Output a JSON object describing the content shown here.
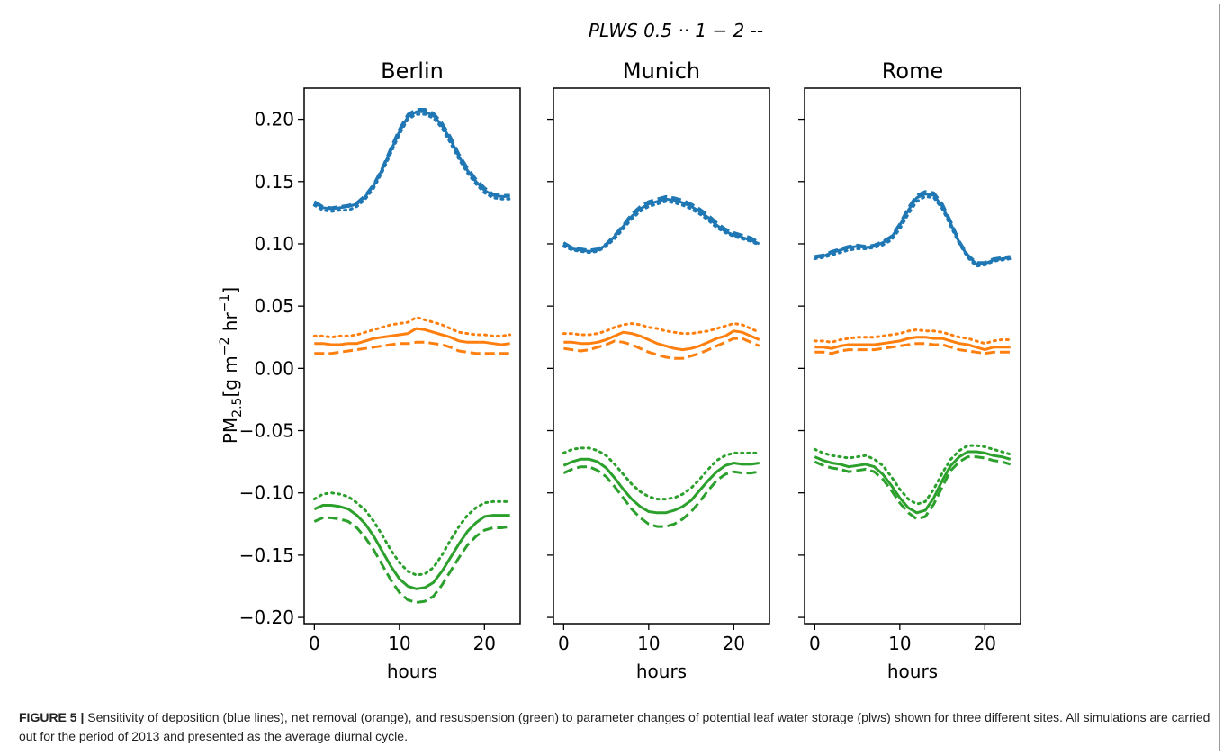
{
  "figure": {
    "legend_text": "PLWS 0.5 ··  1 −  2 --",
    "caption_label": "FIGURE 5 |",
    "caption_text": "Sensitivity of deposition (blue lines), net removal (orange), and resuspension (green) to parameter changes of potential leaf water storage (plws) shown for three different sites. All simulations are carried out for the period of 2013 and presented as the average diurnal cycle."
  },
  "chart_data": {
    "type": "line",
    "ylabel": "PM2.5[g m−2 hr−1]",
    "xlabel": "hours",
    "ylim": [
      -0.205,
      0.225
    ],
    "xlim": [
      -1.2,
      24.2
    ],
    "xticks": [
      0,
      10,
      20
    ],
    "yticks": [
      -0.2,
      -0.15,
      -0.1,
      -0.05,
      0.0,
      0.05,
      0.1,
      0.15,
      0.2
    ],
    "ytick_labels": [
      "−0.20",
      "−0.15",
      "−0.10",
      "−0.05",
      "0.00",
      "0.05",
      "0.10",
      "0.15",
      "0.20"
    ],
    "legend_placement": "top-center",
    "grid": false,
    "colors": {
      "deposition": "#1f77b4",
      "net_removal": "#ff7f0e",
      "resuspension": "#2ca02c"
    },
    "x": [
      0,
      1,
      2,
      3,
      4,
      5,
      6,
      7,
      8,
      9,
      10,
      11,
      12,
      13,
      14,
      15,
      16,
      17,
      18,
      19,
      20,
      21,
      22,
      23
    ],
    "panels": [
      {
        "title": "Berlin",
        "series": [
          {
            "group": "deposition",
            "plws": "0.5",
            "style": "dotted",
            "values": [
              0.131,
              0.127,
              0.126,
              0.127,
              0.127,
              0.13,
              0.136,
              0.145,
              0.158,
              0.173,
              0.188,
              0.2,
              0.204,
              0.204,
              0.201,
              0.193,
              0.181,
              0.168,
              0.157,
              0.148,
              0.141,
              0.137,
              0.136,
              0.136
            ]
          },
          {
            "group": "deposition",
            "plws": "1",
            "style": "solid",
            "values": [
              0.133,
              0.129,
              0.128,
              0.129,
              0.13,
              0.132,
              0.138,
              0.147,
              0.16,
              0.175,
              0.19,
              0.202,
              0.206,
              0.206,
              0.203,
              0.195,
              0.184,
              0.17,
              0.159,
              0.15,
              0.143,
              0.139,
              0.138,
              0.138
            ]
          },
          {
            "group": "deposition",
            "plws": "2",
            "style": "dashed",
            "values": [
              0.134,
              0.13,
              0.129,
              0.13,
              0.131,
              0.133,
              0.139,
              0.148,
              0.161,
              0.177,
              0.192,
              0.204,
              0.208,
              0.208,
              0.205,
              0.197,
              0.186,
              0.172,
              0.161,
              0.152,
              0.145,
              0.14,
              0.139,
              0.139
            ]
          },
          {
            "group": "net_removal",
            "plws": "0.5",
            "style": "dotted",
            "values": [
              0.026,
              0.026,
              0.025,
              0.026,
              0.026,
              0.027,
              0.029,
              0.031,
              0.033,
              0.035,
              0.036,
              0.037,
              0.041,
              0.039,
              0.037,
              0.035,
              0.032,
              0.029,
              0.028,
              0.027,
              0.027,
              0.026,
              0.026,
              0.027
            ]
          },
          {
            "group": "net_removal",
            "plws": "1",
            "style": "solid",
            "values": [
              0.02,
              0.02,
              0.019,
              0.019,
              0.02,
              0.02,
              0.022,
              0.024,
              0.025,
              0.026,
              0.027,
              0.028,
              0.032,
              0.031,
              0.029,
              0.027,
              0.025,
              0.022,
              0.021,
              0.021,
              0.021,
              0.02,
              0.019,
              0.02
            ]
          },
          {
            "group": "net_removal",
            "plws": "2",
            "style": "dashed",
            "values": [
              0.012,
              0.012,
              0.012,
              0.013,
              0.014,
              0.015,
              0.016,
              0.017,
              0.018,
              0.019,
              0.02,
              0.02,
              0.021,
              0.021,
              0.02,
              0.019,
              0.017,
              0.014,
              0.013,
              0.012,
              0.012,
              0.012,
              0.012,
              0.012
            ]
          },
          {
            "group": "resuspension",
            "plws": "0.5",
            "style": "dotted",
            "values": [
              -0.105,
              -0.101,
              -0.1,
              -0.101,
              -0.103,
              -0.108,
              -0.114,
              -0.123,
              -0.134,
              -0.146,
              -0.156,
              -0.163,
              -0.166,
              -0.165,
              -0.16,
              -0.15,
              -0.138,
              -0.127,
              -0.118,
              -0.112,
              -0.108,
              -0.107,
              -0.107,
              -0.107
            ]
          },
          {
            "group": "resuspension",
            "plws": "1",
            "style": "solid",
            "values": [
              -0.113,
              -0.11,
              -0.11,
              -0.111,
              -0.113,
              -0.118,
              -0.125,
              -0.135,
              -0.147,
              -0.159,
              -0.169,
              -0.175,
              -0.177,
              -0.176,
              -0.172,
              -0.163,
              -0.152,
              -0.141,
              -0.131,
              -0.124,
              -0.119,
              -0.118,
              -0.118,
              -0.118
            ]
          },
          {
            "group": "resuspension",
            "plws": "2",
            "style": "dashed",
            "values": [
              -0.123,
              -0.12,
              -0.12,
              -0.121,
              -0.123,
              -0.128,
              -0.136,
              -0.146,
              -0.158,
              -0.17,
              -0.18,
              -0.186,
              -0.188,
              -0.187,
              -0.183,
              -0.174,
              -0.163,
              -0.152,
              -0.142,
              -0.135,
              -0.13,
              -0.128,
              -0.128,
              -0.127
            ]
          }
        ]
      },
      {
        "title": "Munich",
        "series": [
          {
            "group": "deposition",
            "plws": "0.5",
            "style": "dotted",
            "values": [
              0.098,
              0.095,
              0.094,
              0.093,
              0.094,
              0.098,
              0.104,
              0.112,
              0.12,
              0.126,
              0.13,
              0.132,
              0.134,
              0.133,
              0.131,
              0.128,
              0.124,
              0.119,
              0.113,
              0.109,
              0.106,
              0.104,
              0.102,
              0.099
            ]
          },
          {
            "group": "deposition",
            "plws": "1",
            "style": "solid",
            "values": [
              0.1,
              0.096,
              0.095,
              0.094,
              0.095,
              0.099,
              0.106,
              0.114,
              0.122,
              0.128,
              0.132,
              0.134,
              0.136,
              0.135,
              0.133,
              0.13,
              0.126,
              0.121,
              0.115,
              0.11,
              0.107,
              0.105,
              0.103,
              0.1
            ]
          },
          {
            "group": "deposition",
            "plws": "2",
            "style": "dashed",
            "values": [
              0.101,
              0.097,
              0.096,
              0.095,
              0.096,
              0.1,
              0.107,
              0.115,
              0.124,
              0.13,
              0.134,
              0.136,
              0.138,
              0.137,
              0.135,
              0.132,
              0.128,
              0.123,
              0.117,
              0.112,
              0.109,
              0.107,
              0.105,
              0.101
            ]
          },
          {
            "group": "net_removal",
            "plws": "0.5",
            "style": "dotted",
            "values": [
              0.028,
              0.028,
              0.027,
              0.027,
              0.028,
              0.03,
              0.033,
              0.035,
              0.036,
              0.035,
              0.033,
              0.032,
              0.03,
              0.029,
              0.028,
              0.028,
              0.029,
              0.03,
              0.032,
              0.034,
              0.036,
              0.035,
              0.032,
              0.029
            ]
          },
          {
            "group": "net_removal",
            "plws": "1",
            "style": "solid",
            "values": [
              0.021,
              0.021,
              0.02,
              0.02,
              0.021,
              0.023,
              0.026,
              0.029,
              0.028,
              0.026,
              0.023,
              0.02,
              0.018,
              0.016,
              0.015,
              0.016,
              0.018,
              0.021,
              0.024,
              0.026,
              0.03,
              0.029,
              0.026,
              0.023
            ]
          },
          {
            "group": "net_removal",
            "plws": "2",
            "style": "dashed",
            "values": [
              0.016,
              0.015,
              0.014,
              0.015,
              0.017,
              0.019,
              0.022,
              0.021,
              0.019,
              0.016,
              0.013,
              0.011,
              0.009,
              0.008,
              0.008,
              0.01,
              0.012,
              0.015,
              0.018,
              0.021,
              0.024,
              0.024,
              0.021,
              0.018
            ]
          },
          {
            "group": "resuspension",
            "plws": "0.5",
            "style": "dotted",
            "values": [
              -0.068,
              -0.065,
              -0.064,
              -0.064,
              -0.066,
              -0.07,
              -0.077,
              -0.085,
              -0.093,
              -0.099,
              -0.103,
              -0.105,
              -0.105,
              -0.104,
              -0.101,
              -0.096,
              -0.089,
              -0.081,
              -0.074,
              -0.07,
              -0.068,
              -0.068,
              -0.068,
              -0.068
            ]
          },
          {
            "group": "resuspension",
            "plws": "1",
            "style": "solid",
            "values": [
              -0.078,
              -0.075,
              -0.073,
              -0.073,
              -0.075,
              -0.08,
              -0.088,
              -0.097,
              -0.105,
              -0.111,
              -0.115,
              -0.116,
              -0.116,
              -0.114,
              -0.111,
              -0.106,
              -0.098,
              -0.09,
              -0.083,
              -0.078,
              -0.076,
              -0.077,
              -0.077,
              -0.076
            ]
          },
          {
            "group": "resuspension",
            "plws": "2",
            "style": "dashed",
            "values": [
              -0.084,
              -0.081,
              -0.079,
              -0.079,
              -0.082,
              -0.087,
              -0.095,
              -0.104,
              -0.113,
              -0.12,
              -0.125,
              -0.127,
              -0.127,
              -0.125,
              -0.121,
              -0.115,
              -0.107,
              -0.098,
              -0.09,
              -0.085,
              -0.083,
              -0.084,
              -0.084,
              -0.083
            ]
          }
        ]
      },
      {
        "title": "Rome",
        "series": [
          {
            "group": "deposition",
            "plws": "0.5",
            "style": "dotted",
            "values": [
              0.088,
              0.089,
              0.091,
              0.093,
              0.095,
              0.096,
              0.096,
              0.097,
              0.099,
              0.103,
              0.112,
              0.124,
              0.134,
              0.138,
              0.137,
              0.128,
              0.114,
              0.1,
              0.089,
              0.082,
              0.083,
              0.086,
              0.087,
              0.088
            ]
          },
          {
            "group": "deposition",
            "plws": "1",
            "style": "solid",
            "values": [
              0.089,
              0.09,
              0.093,
              0.095,
              0.097,
              0.098,
              0.097,
              0.098,
              0.101,
              0.105,
              0.115,
              0.127,
              0.137,
              0.14,
              0.139,
              0.13,
              0.116,
              0.101,
              0.09,
              0.084,
              0.084,
              0.087,
              0.088,
              0.089
            ]
          },
          {
            "group": "deposition",
            "plws": "2",
            "style": "dashed",
            "values": [
              0.09,
              0.091,
              0.094,
              0.096,
              0.098,
              0.099,
              0.098,
              0.099,
              0.102,
              0.106,
              0.116,
              0.129,
              0.139,
              0.142,
              0.141,
              0.132,
              0.118,
              0.102,
              0.091,
              0.085,
              0.085,
              0.088,
              0.089,
              0.09
            ]
          },
          {
            "group": "net_removal",
            "plws": "0.5",
            "style": "dotted",
            "values": [
              0.022,
              0.022,
              0.021,
              0.023,
              0.024,
              0.025,
              0.025,
              0.025,
              0.026,
              0.027,
              0.028,
              0.03,
              0.031,
              0.03,
              0.03,
              0.029,
              0.027,
              0.025,
              0.024,
              0.022,
              0.02,
              0.022,
              0.023,
              0.023
            ]
          },
          {
            "group": "net_removal",
            "plws": "1",
            "style": "solid",
            "values": [
              0.017,
              0.017,
              0.016,
              0.018,
              0.019,
              0.019,
              0.019,
              0.019,
              0.02,
              0.021,
              0.022,
              0.024,
              0.025,
              0.025,
              0.024,
              0.024,
              0.022,
              0.02,
              0.019,
              0.017,
              0.015,
              0.017,
              0.017,
              0.017
            ]
          },
          {
            "group": "net_removal",
            "plws": "2",
            "style": "dashed",
            "values": [
              0.013,
              0.013,
              0.012,
              0.014,
              0.015,
              0.015,
              0.015,
              0.015,
              0.016,
              0.017,
              0.018,
              0.019,
              0.02,
              0.02,
              0.019,
              0.019,
              0.017,
              0.015,
              0.014,
              0.013,
              0.012,
              0.013,
              0.013,
              0.013
            ]
          },
          {
            "group": "resuspension",
            "plws": "0.5",
            "style": "dotted",
            "values": [
              -0.065,
              -0.068,
              -0.07,
              -0.071,
              -0.072,
              -0.071,
              -0.07,
              -0.073,
              -0.078,
              -0.087,
              -0.097,
              -0.105,
              -0.109,
              -0.107,
              -0.097,
              -0.084,
              -0.073,
              -0.066,
              -0.062,
              -0.062,
              -0.063,
              -0.065,
              -0.067,
              -0.069
            ]
          },
          {
            "group": "resuspension",
            "plws": "1",
            "style": "solid",
            "values": [
              -0.071,
              -0.074,
              -0.076,
              -0.077,
              -0.079,
              -0.078,
              -0.077,
              -0.079,
              -0.085,
              -0.094,
              -0.104,
              -0.112,
              -0.116,
              -0.114,
              -0.104,
              -0.09,
              -0.078,
              -0.071,
              -0.067,
              -0.067,
              -0.068,
              -0.07,
              -0.071,
              -0.073
            ]
          },
          {
            "group": "resuspension",
            "plws": "2",
            "style": "dashed",
            "values": [
              -0.075,
              -0.078,
              -0.08,
              -0.081,
              -0.083,
              -0.082,
              -0.081,
              -0.083,
              -0.089,
              -0.098,
              -0.108,
              -0.116,
              -0.121,
              -0.119,
              -0.109,
              -0.095,
              -0.082,
              -0.075,
              -0.071,
              -0.071,
              -0.072,
              -0.074,
              -0.075,
              -0.077
            ]
          }
        ]
      }
    ]
  }
}
